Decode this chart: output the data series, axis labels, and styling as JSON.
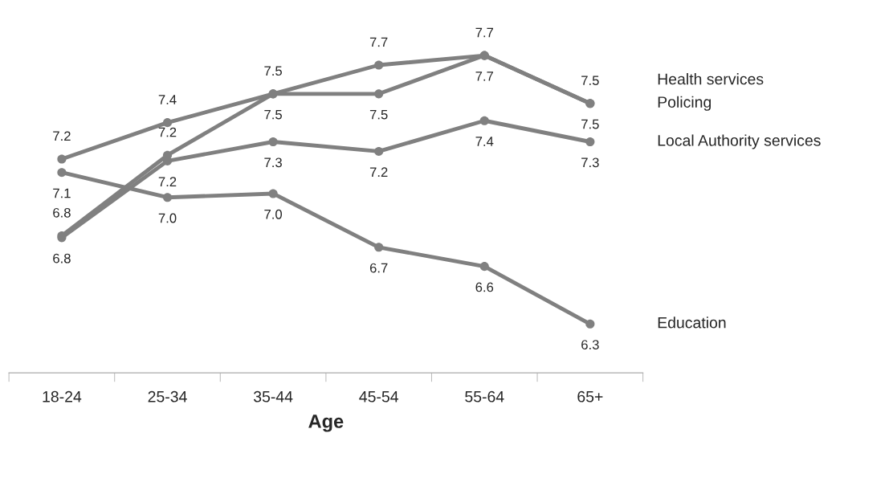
{
  "chart_data": {
    "type": "line",
    "xlabel": "Age",
    "categories": [
      "18-24",
      "25-34",
      "35-44",
      "45-54",
      "55-64",
      "65+"
    ],
    "legend": false,
    "grid": false,
    "marker": "circle",
    "line_style": "solid",
    "series": [
      {
        "name": "Health services",
        "color": "#808080",
        "values": [
          7.16,
          7.35,
          7.5,
          7.65,
          7.7,
          7.45
        ],
        "value_labels": [
          "7.2",
          "7.4",
          "7.5",
          "7.7",
          "7.7",
          "7.5"
        ]
      },
      {
        "name": "Policing",
        "color": "#808080",
        "values": [
          6.76,
          7.18,
          7.5,
          7.5,
          7.7,
          7.45
        ],
        "value_labels": [
          "6.8",
          "7.2",
          "7.5",
          "7.5",
          "7.7",
          "7.5"
        ]
      },
      {
        "name": "Local Authority services",
        "color": "#808080",
        "values": [
          6.75,
          7.15,
          7.25,
          7.2,
          7.36,
          7.25
        ],
        "value_labels": [
          "6.8",
          "7.2",
          "7.3",
          "7.2",
          "7.4",
          "7.3"
        ]
      },
      {
        "name": "Education",
        "color": "#808080",
        "values": [
          7.09,
          6.96,
          6.98,
          6.7,
          6.6,
          6.3
        ],
        "value_labels": [
          "7.1",
          "7.0",
          "7.0",
          "6.7",
          "6.6",
          "6.3"
        ]
      }
    ]
  }
}
